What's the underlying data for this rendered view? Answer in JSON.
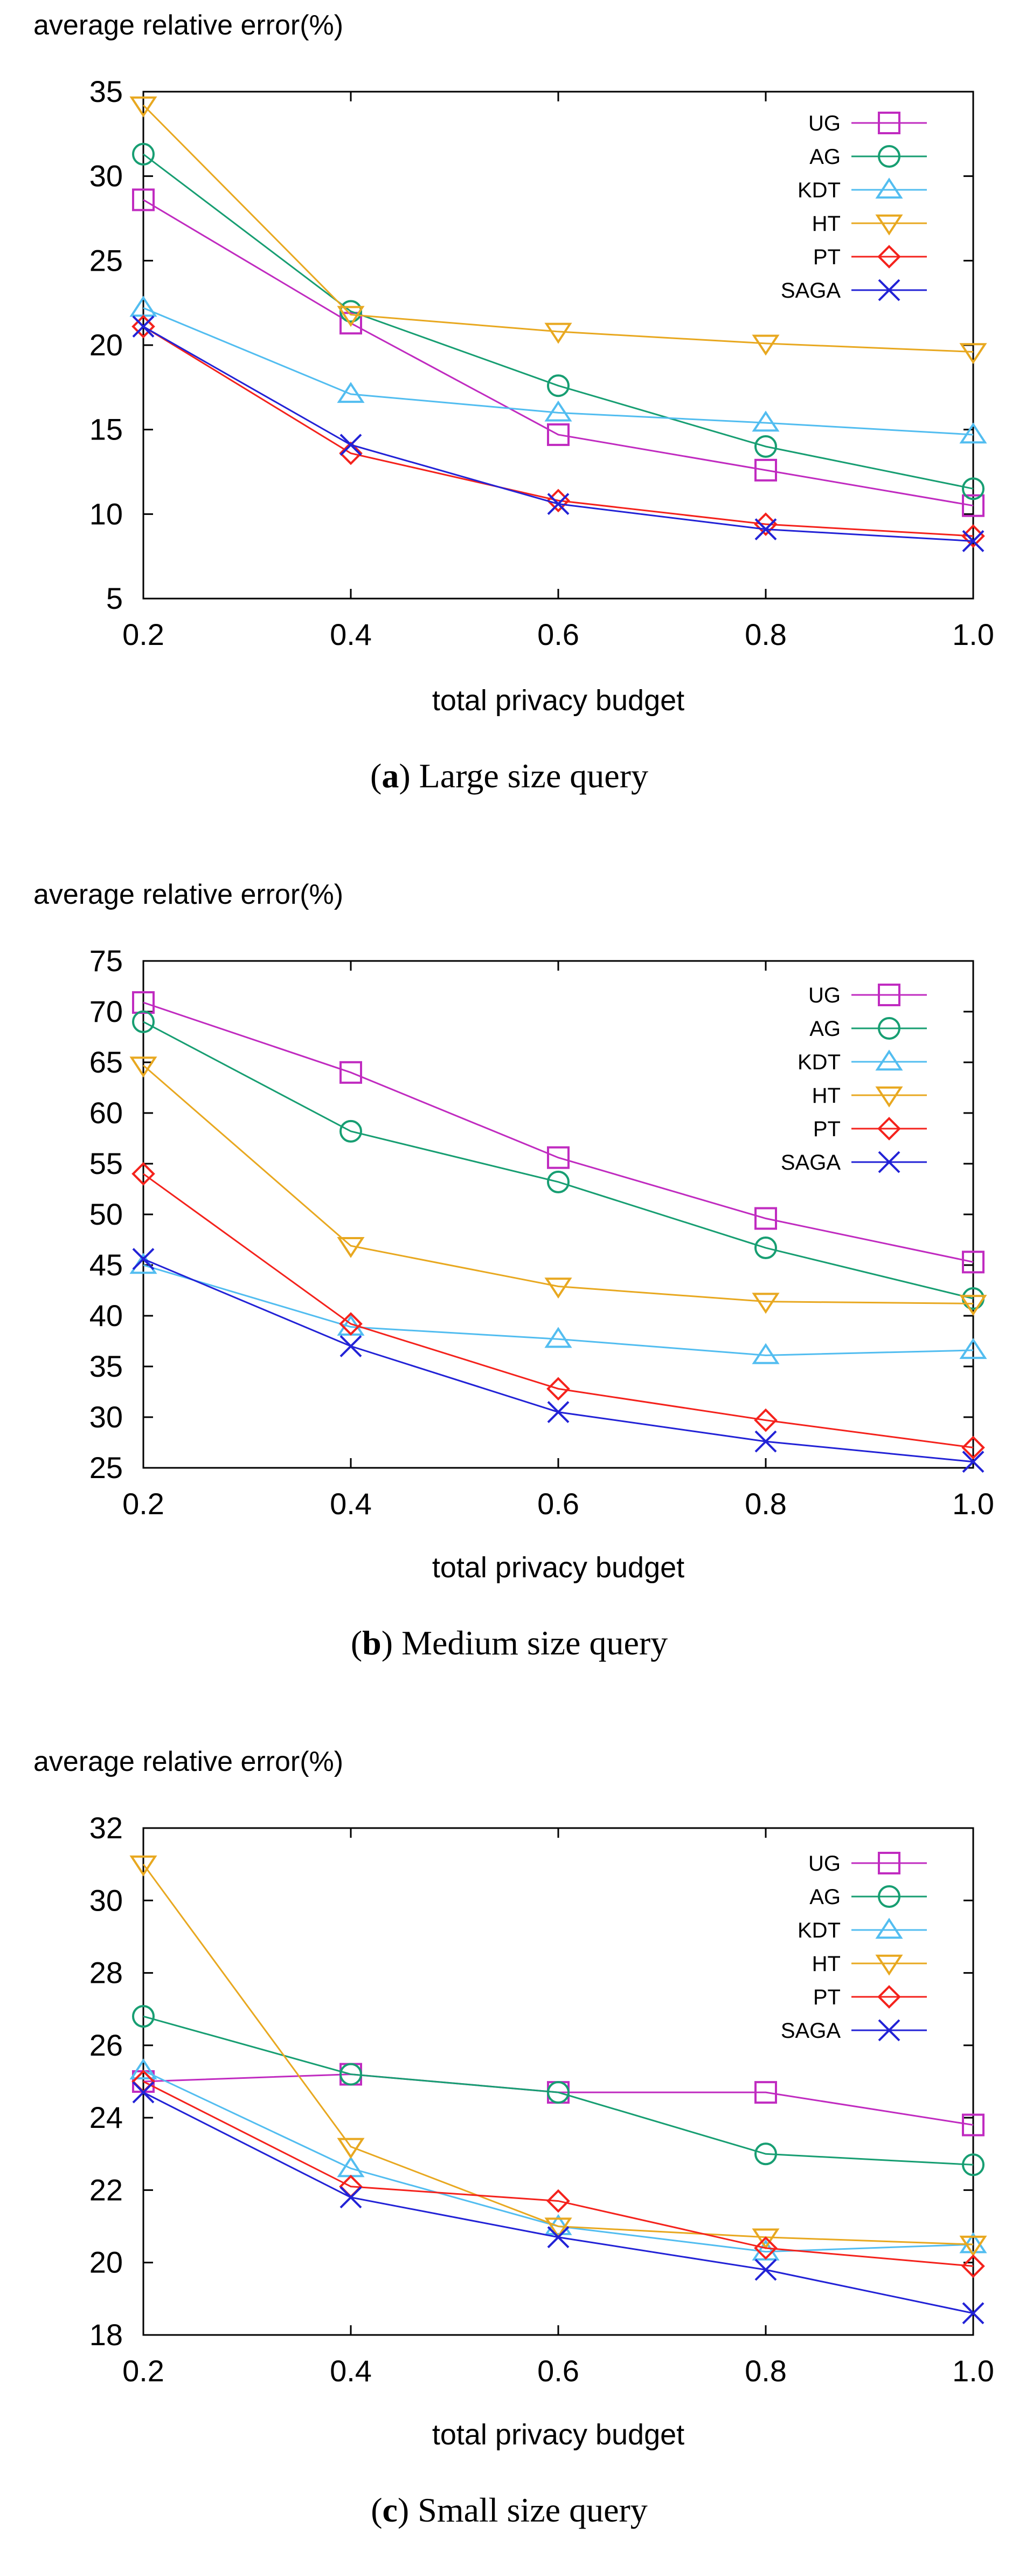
{
  "figure": {
    "panels": [
      {
        "caption_letter": "a",
        "caption_text": "Large size query"
      },
      {
        "caption_letter": "b",
        "caption_text": "Medium size query"
      },
      {
        "caption_letter": "c",
        "caption_text": "Small size query"
      }
    ]
  },
  "chart_data": [
    {
      "type": "line",
      "title": "",
      "ylabel": "average relative error(%)",
      "xlabel": "total privacy budget",
      "x": [
        0.2,
        0.4,
        0.6,
        0.8,
        1.0
      ],
      "x_ticks": [
        "0.2",
        "0.4",
        "0.6",
        "0.8",
        "1.0"
      ],
      "ylim": [
        5,
        35
      ],
      "y_ticks": [
        5,
        10,
        15,
        20,
        25,
        30,
        35
      ],
      "legend": "top-right",
      "series": [
        {
          "name": "UG",
          "marker": "square",
          "color": "#c02bc0",
          "values": [
            28.6,
            21.3,
            14.7,
            12.6,
            10.5
          ]
        },
        {
          "name": "AG",
          "marker": "circle",
          "color": "#179e72",
          "values": [
            31.3,
            22.0,
            17.6,
            14.0,
            11.5
          ]
        },
        {
          "name": "KDT",
          "marker": "triangle-up",
          "color": "#52bdf0",
          "values": [
            22.2,
            17.1,
            16.0,
            15.4,
            14.7
          ]
        },
        {
          "name": "HT",
          "marker": "triangle-down",
          "color": "#e8a820",
          "values": [
            34.2,
            21.8,
            20.8,
            20.1,
            19.6
          ]
        },
        {
          "name": "PT",
          "marker": "diamond",
          "color": "#f4221c",
          "values": [
            21.1,
            13.6,
            10.8,
            9.4,
            8.7
          ]
        },
        {
          "name": "SAGA",
          "marker": "x",
          "color": "#2222d6",
          "values": [
            21.1,
            14.1,
            10.6,
            9.1,
            8.4
          ]
        }
      ]
    },
    {
      "type": "line",
      "title": "",
      "ylabel": "average relative error(%)",
      "xlabel": "total privacy budget",
      "x": [
        0.2,
        0.4,
        0.6,
        0.8,
        1.0
      ],
      "x_ticks": [
        "0.2",
        "0.4",
        "0.6",
        "0.8",
        "1.0"
      ],
      "ylim": [
        25,
        75
      ],
      "y_ticks": [
        25,
        30,
        35,
        40,
        45,
        50,
        55,
        60,
        65,
        70,
        75
      ],
      "legend": "top-right",
      "series": [
        {
          "name": "UG",
          "marker": "square",
          "color": "#c02bc0",
          "values": [
            70.9,
            64.0,
            55.6,
            49.6,
            45.3
          ]
        },
        {
          "name": "AG",
          "marker": "circle",
          "color": "#179e72",
          "values": [
            69.0,
            58.2,
            53.2,
            46.7,
            41.7
          ]
        },
        {
          "name": "KDT",
          "marker": "triangle-up",
          "color": "#52bdf0",
          "values": [
            45.0,
            38.9,
            37.7,
            36.1,
            36.6
          ]
        },
        {
          "name": "HT",
          "marker": "triangle-down",
          "color": "#e8a820",
          "values": [
            64.7,
            46.9,
            42.9,
            41.4,
            41.2
          ]
        },
        {
          "name": "PT",
          "marker": "diamond",
          "color": "#f4221c",
          "values": [
            54.0,
            39.2,
            32.8,
            29.7,
            27.0
          ]
        },
        {
          "name": "SAGA",
          "marker": "x",
          "color": "#2222d6",
          "values": [
            45.6,
            37.0,
            30.5,
            27.6,
            25.6
          ]
        }
      ]
    },
    {
      "type": "line",
      "title": "",
      "ylabel": "average relative error(%)",
      "xlabel": "total privacy budget",
      "x": [
        0.2,
        0.4,
        0.6,
        0.8,
        1.0
      ],
      "x_ticks": [
        "0.2",
        "0.4",
        "0.6",
        "0.8",
        "1.0"
      ],
      "ylim": [
        18,
        32
      ],
      "y_ticks": [
        18,
        20,
        22,
        24,
        26,
        28,
        30,
        32
      ],
      "legend": "top-right",
      "series": [
        {
          "name": "UG",
          "marker": "square",
          "color": "#c02bc0",
          "values": [
            25.0,
            25.2,
            24.7,
            24.7,
            23.8
          ]
        },
        {
          "name": "AG",
          "marker": "circle",
          "color": "#179e72",
          "values": [
            26.8,
            25.2,
            24.7,
            23.0,
            22.7
          ]
        },
        {
          "name": "KDT",
          "marker": "triangle-up",
          "color": "#52bdf0",
          "values": [
            25.3,
            22.6,
            21.0,
            20.3,
            20.5
          ]
        },
        {
          "name": "HT",
          "marker": "triangle-down",
          "color": "#e8a820",
          "values": [
            31.0,
            23.2,
            21.0,
            20.7,
            20.5
          ]
        },
        {
          "name": "PT",
          "marker": "diamond",
          "color": "#f4221c",
          "values": [
            25.0,
            22.1,
            21.7,
            20.4,
            19.9
          ]
        },
        {
          "name": "SAGA",
          "marker": "x",
          "color": "#2222d6",
          "values": [
            24.7,
            21.8,
            20.7,
            19.8,
            18.6
          ]
        }
      ]
    }
  ]
}
